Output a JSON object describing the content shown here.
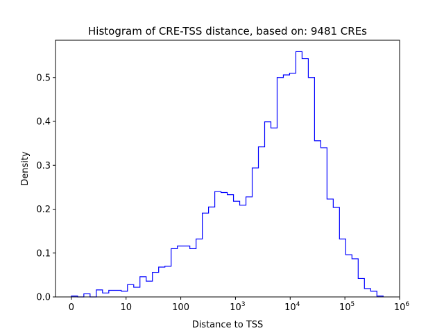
{
  "chart_data": {
    "type": "histogram-step",
    "title": "Histogram of CRE-TSS distance, based on: 9481 CREs",
    "xlabel": "Distance to TSS",
    "ylabel": "Density",
    "xscale": "symlog",
    "linthresh": 10,
    "xlim": [
      -2.9,
      1000000
    ],
    "ylim": [
      0,
      0.585
    ],
    "bin_range": [
      0,
      500000
    ],
    "bins": 50,
    "line_color": "#0000ff",
    "grid": false,
    "x_ticks": [
      {
        "value": 0,
        "base": "0",
        "exp": ""
      },
      {
        "value": 10,
        "base": "10",
        "exp": ""
      },
      {
        "value": 100,
        "base": "100",
        "exp": ""
      },
      {
        "value": 1000,
        "base": "10",
        "exp": "3"
      },
      {
        "value": 10000,
        "base": "10",
        "exp": "4"
      },
      {
        "value": 100000,
        "base": "10",
        "exp": "5"
      },
      {
        "value": 1000000,
        "base": "10",
        "exp": "6"
      }
    ],
    "y_ticks": [
      0.0,
      0.1,
      0.2,
      0.3,
      0.4,
      0.5
    ],
    "y_tick_labels": [
      "0.0",
      "0.1",
      "0.2",
      "0.3",
      "0.4",
      "0.5"
    ],
    "density": [
      0.002,
      0,
      0.007,
      0,
      0.016,
      0.009,
      0.015,
      0.015,
      0.013,
      0.028,
      0.022,
      0.046,
      0.036,
      0.056,
      0.068,
      0.07,
      0.11,
      0.116,
      0.116,
      0.11,
      0.132,
      0.191,
      0.205,
      0.24,
      0.238,
      0.233,
      0.218,
      0.209,
      0.228,
      0.294,
      0.342,
      0.399,
      0.385,
      0.5,
      0.506,
      0.51,
      0.559,
      0.543,
      0.5,
      0.356,
      0.34,
      0.223,
      0.204,
      0.132,
      0.096,
      0.087,
      0.042,
      0.019,
      0.013,
      0.002
    ]
  }
}
